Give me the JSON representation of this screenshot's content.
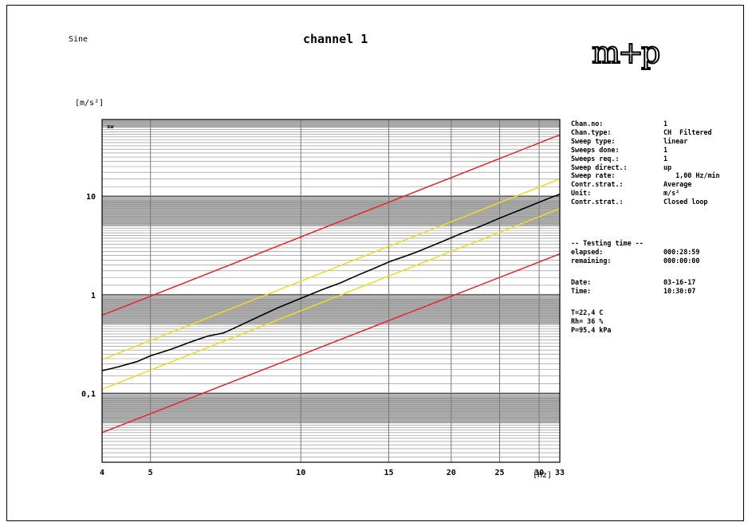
{
  "header": {
    "mode_label": "Sine",
    "title": "channel 1",
    "logo_text": "m+p"
  },
  "colors": {
    "tolerance_abort": "#e8242b",
    "tolerance_alarm": "#f2d92a",
    "control": "#000000",
    "grid": "#888888",
    "band": "#a6a6a6"
  },
  "chart_data": {
    "type": "line",
    "title": "channel 1",
    "xlabel": "[Hz]",
    "ylabel": "[m/s²]",
    "x_scale": "log",
    "y_scale": "log",
    "xlim": [
      4,
      33
    ],
    "ylim": [
      0.02,
      60
    ],
    "x_ticks": [
      4,
      5,
      10,
      15,
      20,
      25,
      30,
      33
    ],
    "y_ticks": [
      0.1,
      1,
      10
    ],
    "y_tick_labels": [
      "0,1",
      "1",
      "10"
    ],
    "grid": true,
    "series": [
      {
        "role": "upper-abort",
        "color": "#e8242b",
        "x": [
          4,
          33
        ],
        "y": [
          0.62,
          42
        ]
      },
      {
        "role": "upper-alarm",
        "color": "#f2d92a",
        "x": [
          4,
          33
        ],
        "y": [
          0.22,
          15
        ]
      },
      {
        "role": "control",
        "color": "#000000",
        "x": [
          4,
          4.3,
          4.7,
          5,
          5.5,
          6,
          6.5,
          7,
          7.5,
          8,
          9,
          10,
          11,
          12,
          13,
          14,
          15,
          17,
          19,
          21,
          23,
          25,
          27,
          29,
          31,
          33
        ],
        "y": [
          0.17,
          0.185,
          0.21,
          0.24,
          0.28,
          0.33,
          0.38,
          0.41,
          0.48,
          0.56,
          0.74,
          0.92,
          1.12,
          1.32,
          1.58,
          1.85,
          2.15,
          2.7,
          3.4,
          4.2,
          5.0,
          6.0,
          7.0,
          8.1,
          9.3,
          10.5
        ]
      },
      {
        "role": "lower-alarm",
        "color": "#f2d92a",
        "x": [
          4,
          33
        ],
        "y": [
          0.11,
          7.5
        ]
      },
      {
        "role": "lower-abort",
        "color": "#e8242b",
        "x": [
          4,
          33
        ],
        "y": [
          0.04,
          2.6
        ]
      }
    ]
  },
  "info": {
    "rows": [
      {
        "label": "Chan.no:",
        "value": "1"
      },
      {
        "label": "Chan.type:",
        "value": "CH  Filtered"
      },
      {
        "label": "Sweep type:",
        "value": "linear"
      },
      {
        "label": "Sweeps done:",
        "value": "1"
      },
      {
        "label": "Sweeps req.:",
        "value": "1"
      },
      {
        "label": "Sweep direct.:",
        "value": "up"
      },
      {
        "label": "Sweep rate:",
        "value": "   1,00 Hz/min"
      },
      {
        "label": "Contr.strat.:",
        "value": "Average"
      },
      {
        "label": "Unit:",
        "value": "m/s²"
      },
      {
        "label": "Contr.strat.:",
        "value": "Closed loop"
      }
    ],
    "testing_header": "-- Testing time --",
    "elapsed_label": "elapsed:",
    "elapsed_value": "000:28:59",
    "remaining_label": "remaining:",
    "remaining_value": "000:00:00",
    "date_label": "Date:",
    "date_value": "03-16-17",
    "time_label": "Time:",
    "time_value": "10:30:07",
    "temp": "T=22,4 C",
    "humidity": "Rh= 36 %",
    "pressure": "P=95,4 kPa"
  }
}
